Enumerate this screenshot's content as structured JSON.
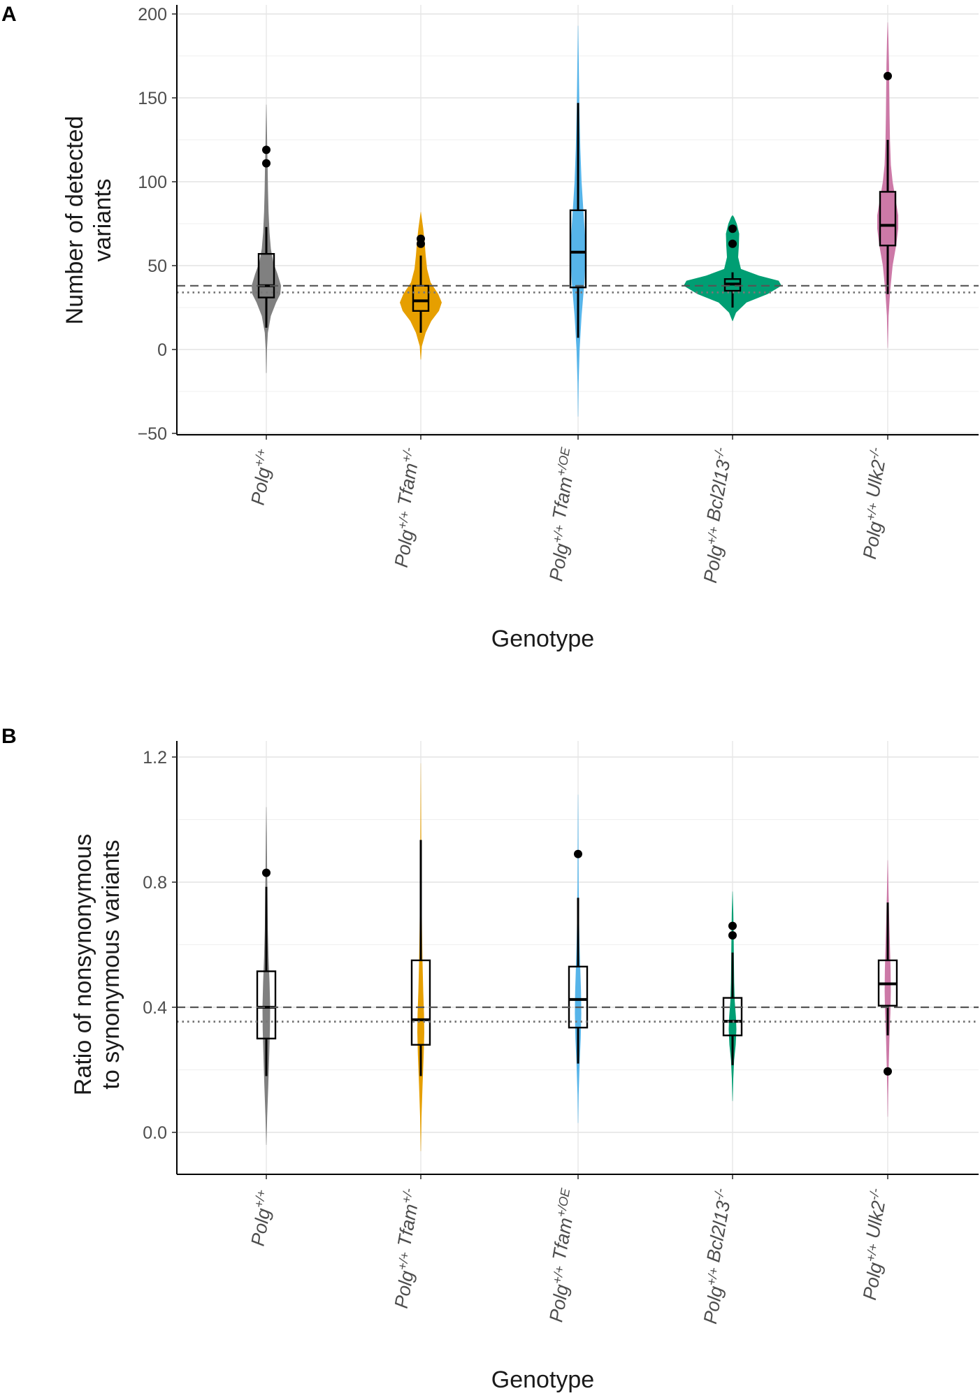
{
  "chart_data": [
    {
      "panel": "A",
      "type": "violin",
      "xlabel": "Genotype",
      "ylabel": [
        "Number of detected",
        "variants"
      ],
      "ylim": [
        -50,
        200
      ],
      "yticks": [
        -50,
        0,
        50,
        100,
        150,
        200
      ],
      "reference_lines": [
        {
          "style": "dashed",
          "value": 38
        },
        {
          "style": "dotted",
          "value": 34
        }
      ],
      "grid": true,
      "categories": [
        {
          "label_parts": [
            {
              "t": "Polg",
              "sup": false
            },
            {
              "t": "+/+",
              "sup": true
            }
          ],
          "color": "#808080",
          "violin": [
            [
              -14,
              0.3
            ],
            [
              0,
              0.9
            ],
            [
              10,
              2.2
            ],
            [
              20,
              6.5
            ],
            [
              28,
              14
            ],
            [
              33,
              20
            ],
            [
              38,
              21
            ],
            [
              45,
              16
            ],
            [
              52,
              10
            ],
            [
              60,
              6.5
            ],
            [
              70,
              4.5
            ],
            [
              82,
              3.2
            ],
            [
              95,
              2.4
            ],
            [
              108,
              1.9
            ],
            [
              120,
              1.3
            ],
            [
              135,
              0.7
            ],
            [
              146,
              0.2
            ]
          ],
          "box": {
            "q1": 31,
            "median": 38,
            "q3": 57,
            "lower": 13,
            "upper": 73
          },
          "outliers": [
            119,
            111
          ]
        },
        {
          "label_parts": [
            {
              "t": "Polg",
              "sup": false
            },
            {
              "t": "+/+",
              "sup": true
            },
            {
              "t": " Tfam",
              "sup": false
            },
            {
              "t": "+/-",
              "sup": true
            }
          ],
          "color": "#e69f00",
          "violin": [
            [
              -6,
              0.3
            ],
            [
              2,
              1.5
            ],
            [
              10,
              7
            ],
            [
              17,
              15
            ],
            [
              23,
              26
            ],
            [
              28,
              30
            ],
            [
              33,
              25
            ],
            [
              40,
              14
            ],
            [
              48,
              9
            ],
            [
              56,
              7
            ],
            [
              64,
              5.5
            ],
            [
              72,
              3.5
            ],
            [
              78,
              1.5
            ],
            [
              82,
              0.2
            ]
          ],
          "box": {
            "q1": 23,
            "median": 29,
            "q3": 38,
            "lower": 10,
            "upper": 56
          },
          "outliers": [
            66,
            63
          ]
        },
        {
          "label_parts": [
            {
              "t": "Polg",
              "sup": false
            },
            {
              "t": "+/+",
              "sup": true
            },
            {
              "t": " Tfam",
              "sup": false
            },
            {
              "t": "+/OE",
              "sup": true
            }
          ],
          "color": "#56b4e9",
          "violin": [
            [
              -40,
              0.2
            ],
            [
              -20,
              0.8
            ],
            [
              0,
              2.2
            ],
            [
              20,
              5
            ],
            [
              40,
              9
            ],
            [
              55,
              11
            ],
            [
              65,
              10.5
            ],
            [
              80,
              8
            ],
            [
              100,
              5
            ],
            [
              120,
              3.2
            ],
            [
              145,
              1.8
            ],
            [
              170,
              1
            ],
            [
              193,
              0.2
            ]
          ],
          "box": {
            "q1": 37,
            "median": 58,
            "q3": 83,
            "lower": 7,
            "upper": 147
          },
          "outliers": []
        },
        {
          "label_parts": [
            {
              "t": "Polg",
              "sup": false
            },
            {
              "t": "+/+",
              "sup": true
            },
            {
              "t": " Bcl2l13",
              "sup": false
            },
            {
              "t": "-/-",
              "sup": true
            }
          ],
          "color": "#009e73",
          "violin": [
            [
              17,
              0.3
            ],
            [
              22,
              5
            ],
            [
              28,
              20
            ],
            [
              33,
              50
            ],
            [
              38,
              70
            ],
            [
              41,
              66
            ],
            [
              44,
              38
            ],
            [
              48,
              12
            ],
            [
              55,
              8
            ],
            [
              62,
              9
            ],
            [
              69,
              9.5
            ],
            [
              75,
              6
            ],
            [
              79,
              2
            ],
            [
              80,
              0.2
            ]
          ],
          "box": {
            "q1": 35,
            "median": 39,
            "q3": 42,
            "lower": 25,
            "upper": 46
          },
          "outliers": [
            72,
            63
          ]
        },
        {
          "label_parts": [
            {
              "t": "Polg",
              "sup": false
            },
            {
              "t": "+/+",
              "sup": true
            },
            {
              "t": " Ulk2",
              "sup": false
            },
            {
              "t": "-/-",
              "sup": true
            }
          ],
          "color": "#cc79a7",
          "violin": [
            [
              1,
              0.2
            ],
            [
              20,
              1.2
            ],
            [
              35,
              3.5
            ],
            [
              50,
              7
            ],
            [
              62,
              12
            ],
            [
              72,
              15
            ],
            [
              80,
              15
            ],
            [
              90,
              11
            ],
            [
              100,
              7
            ],
            [
              110,
              4.5
            ],
            [
              125,
              3.2
            ],
            [
              140,
              2.6
            ],
            [
              155,
              2.2
            ],
            [
              170,
              1.8
            ],
            [
              185,
              1
            ],
            [
              195,
              0.2
            ]
          ],
          "box": {
            "q1": 62,
            "median": 74,
            "q3": 94,
            "lower": 33,
            "upper": 125
          },
          "outliers": [
            163
          ]
        }
      ]
    },
    {
      "panel": "B",
      "type": "violin",
      "xlabel": "Genotype",
      "ylabel": [
        "Ratio of nonsynonymous",
        "to synonymous variants"
      ],
      "ylim": [
        -0.13,
        1.27
      ],
      "yticks": [
        0.0,
        0.4,
        0.8,
        1.2
      ],
      "reference_lines": [
        {
          "style": "dashed",
          "value": 0.4
        },
        {
          "style": "dotted",
          "value": 0.354
        }
      ],
      "grid": true,
      "categories": [
        {
          "label_parts": [
            {
              "t": "Polg",
              "sup": false
            },
            {
              "t": "+/+",
              "sup": true
            }
          ],
          "color": "#808080",
          "violin": [
            [
              -0.04,
              0.2
            ],
            [
              0.05,
              1.2
            ],
            [
              0.15,
              2.8
            ],
            [
              0.25,
              4.2
            ],
            [
              0.33,
              5.2
            ],
            [
              0.4,
              5.5
            ],
            [
              0.48,
              4.6
            ],
            [
              0.56,
              3.2
            ],
            [
              0.65,
              2.1
            ],
            [
              0.75,
              1.6
            ],
            [
              0.85,
              1.1
            ],
            [
              0.95,
              0.7
            ],
            [
              1.04,
              0.2
            ]
          ],
          "box": {
            "q1": 0.3,
            "median": 0.4,
            "q3": 0.515,
            "lower": 0.18,
            "upper": 0.785
          },
          "outliers": [
            0.83
          ]
        },
        {
          "label_parts": [
            {
              "t": "Polg",
              "sup": false
            },
            {
              "t": "+/+",
              "sup": true
            },
            {
              "t": " Tfam",
              "sup": false
            },
            {
              "t": "+/-",
              "sup": true
            }
          ],
          "color": "#e69f00",
          "violin": [
            [
              -0.06,
              0.2
            ],
            [
              0.05,
              1
            ],
            [
              0.15,
              2.5
            ],
            [
              0.25,
              4.2
            ],
            [
              0.32,
              5
            ],
            [
              0.38,
              4.6
            ],
            [
              0.45,
              3.5
            ],
            [
              0.55,
              2.4
            ],
            [
              0.65,
              1.7
            ],
            [
              0.75,
              1.2
            ],
            [
              0.85,
              0.8
            ],
            [
              0.95,
              0.6
            ],
            [
              1.05,
              0.4
            ],
            [
              1.18,
              0.1
            ]
          ],
          "box": {
            "q1": 0.28,
            "median": 0.36,
            "q3": 0.55,
            "lower": 0.18,
            "upper": 0.935
          },
          "outliers": []
        },
        {
          "label_parts": [
            {
              "t": "Polg",
              "sup": false
            },
            {
              "t": "+/+",
              "sup": true
            },
            {
              "t": " Tfam",
              "sup": false
            },
            {
              "t": "+/OE",
              "sup": true
            }
          ],
          "color": "#56b4e9",
          "violin": [
            [
              0.03,
              0.2
            ],
            [
              0.12,
              0.8
            ],
            [
              0.22,
              2.2
            ],
            [
              0.3,
              3.8
            ],
            [
              0.38,
              4.6
            ],
            [
              0.45,
              4.2
            ],
            [
              0.52,
              3.2
            ],
            [
              0.6,
              2.1
            ],
            [
              0.7,
              1.2
            ],
            [
              0.8,
              0.8
            ],
            [
              0.9,
              0.6
            ],
            [
              1.0,
              0.4
            ],
            [
              1.08,
              0.15
            ]
          ],
          "box": {
            "q1": 0.335,
            "median": 0.425,
            "q3": 0.53,
            "lower": 0.22,
            "upper": 0.75
          },
          "outliers": [
            0.89
          ]
        },
        {
          "label_parts": [
            {
              "t": "Polg",
              "sup": false
            },
            {
              "t": "+/+",
              "sup": true
            },
            {
              "t": " Bcl2l13",
              "sup": false
            },
            {
              "t": "-/-",
              "sup": true
            }
          ],
          "color": "#009e73",
          "violin": [
            [
              0.1,
              0.2
            ],
            [
              0.17,
              1
            ],
            [
              0.23,
              2.2
            ],
            [
              0.28,
              4.5
            ],
            [
              0.33,
              5.5
            ],
            [
              0.37,
              4.8
            ],
            [
              0.42,
              3.1
            ],
            [
              0.48,
              2.3
            ],
            [
              0.55,
              1.9
            ],
            [
              0.62,
              1.6
            ],
            [
              0.7,
              1.1
            ],
            [
              0.77,
              0.2
            ]
          ],
          "box": {
            "q1": 0.31,
            "median": 0.355,
            "q3": 0.43,
            "lower": 0.215,
            "upper": 0.575
          },
          "outliers": [
            0.66,
            0.63
          ]
        },
        {
          "label_parts": [
            {
              "t": "Polg",
              "sup": false
            },
            {
              "t": "+/+",
              "sup": true
            },
            {
              "t": " Ulk2",
              "sup": false
            },
            {
              "t": "-/-",
              "sup": true
            }
          ],
          "color": "#cc79a7",
          "violin": [
            [
              0.05,
              0.2
            ],
            [
              0.12,
              0.6
            ],
            [
              0.2,
              1.3
            ],
            [
              0.3,
              2.4
            ],
            [
              0.38,
              3.8
            ],
            [
              0.45,
              4.4
            ],
            [
              0.52,
              4.1
            ],
            [
              0.6,
              3.1
            ],
            [
              0.68,
              2.1
            ],
            [
              0.76,
              1.2
            ],
            [
              0.82,
              0.7
            ],
            [
              0.87,
              0.2
            ]
          ],
          "box": {
            "q1": 0.405,
            "median": 0.475,
            "q3": 0.55,
            "lower": 0.31,
            "upper": 0.735
          },
          "outliers": [
            0.195
          ]
        }
      ]
    }
  ]
}
